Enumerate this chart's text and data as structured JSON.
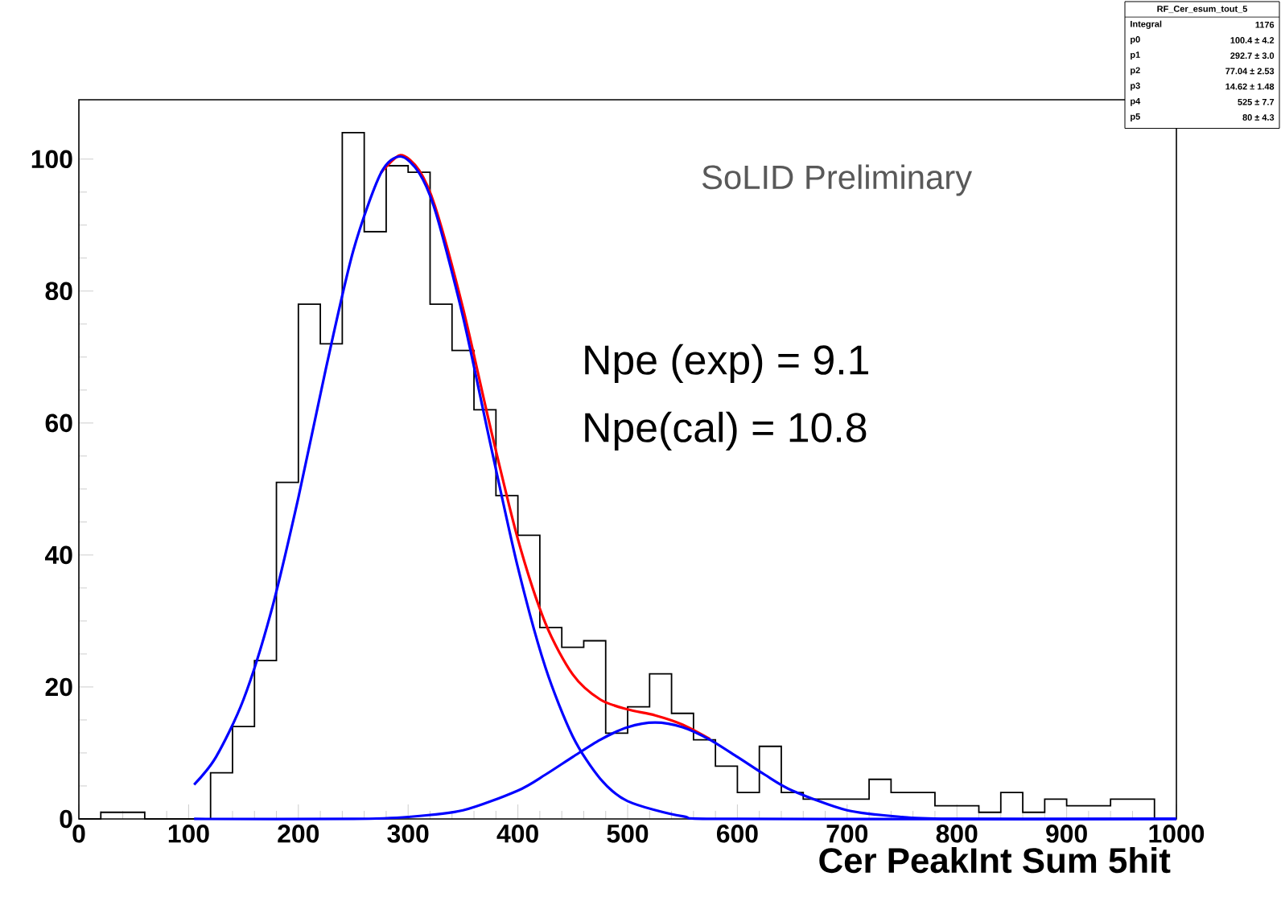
{
  "chart_data": {
    "type": "histogram",
    "xlabel": "Cer PeakInt Sum 5hit",
    "xlim": [
      0,
      1000
    ],
    "ylim": [
      0,
      109
    ],
    "xticks": [
      0,
      100,
      200,
      300,
      400,
      500,
      600,
      700,
      800,
      900,
      1000
    ],
    "yticks": [
      0,
      20,
      40,
      60,
      80,
      100
    ],
    "series": [
      {
        "color": "#000000",
        "bins": [
          0,
          20,
          40,
          60,
          80,
          100,
          120,
          140,
          160,
          180,
          200,
          220,
          240,
          260,
          280,
          300,
          320,
          340,
          360,
          380,
          400,
          420,
          440,
          460,
          480,
          500,
          520,
          540,
          560,
          580,
          600,
          620,
          640,
          660,
          680,
          700,
          720,
          740,
          760,
          780,
          800,
          820,
          840,
          860,
          880,
          900,
          920,
          940,
          960,
          980,
          1000
        ],
        "values": [
          0,
          1,
          1,
          0,
          0,
          0,
          7,
          14,
          24,
          51,
          78,
          72,
          104,
          89,
          99,
          98,
          78,
          71,
          62,
          49,
          43,
          29,
          26,
          27,
          13,
          17,
          22,
          16,
          12,
          8,
          4,
          11,
          4,
          3,
          3,
          3,
          6,
          4,
          4,
          2,
          2,
          1,
          4,
          1,
          3,
          2,
          2,
          3,
          3,
          0
        ]
      },
      {
        "type": "line",
        "color": "#ff0000",
        "x": [
          275,
          293,
          310,
          325,
          350,
          375,
          400,
          425,
          450,
          475,
          500,
          525,
          550,
          575
        ],
        "values": [
          97.9,
          100.6,
          98.3,
          92.6,
          77.4,
          59.3,
          42.4,
          29.7,
          21.9,
          18.1,
          16.6,
          15.7,
          14.3,
          12.1
        ]
      },
      {
        "type": "line",
        "color": "#0000ff",
        "x": [
          105,
          125,
          150,
          175,
          200,
          225,
          250,
          275,
          293,
          310,
          325,
          350,
          375,
          400,
          425,
          450,
          475,
          500,
          550,
          600,
          1000
        ],
        "values": [
          5.2,
          9.4,
          18.1,
          31.3,
          48.7,
          68.2,
          86.1,
          97.8,
          100.4,
          97.9,
          92.0,
          76.1,
          56.8,
          38.1,
          23.0,
          12.5,
          6.1,
          2.7,
          0.4,
          0,
          0
        ]
      },
      {
        "type": "line",
        "color": "#0000ff",
        "x": [
          105,
          250,
          300,
          350,
          400,
          425,
          450,
          475,
          500,
          525,
          550,
          575,
          600,
          625,
          650,
          700,
          750,
          800,
          1000
        ],
        "values": [
          0,
          0,
          0.3,
          1.3,
          4.3,
          6.7,
          9.4,
          12.0,
          13.9,
          14.6,
          13.9,
          12.0,
          9.4,
          6.7,
          4.3,
          1.3,
          0.3,
          0,
          0
        ]
      }
    ],
    "annotations": [
      "SoLID Preliminary",
      "Npe (exp) = 9.1",
      "Npe(cal) = 10.8",
      "RF_Cer_esum_tout_5",
      "Integral",
      "1176",
      "p0",
      "100.4 ± 4.2",
      "p1",
      "292.7 ± 3.0",
      "p2",
      "77.04 ± 2.53",
      "p3",
      "14.62 ± 1.48",
      "p4",
      "525 ± 7.7",
      "p5",
      "80 ± 4.3"
    ]
  }
}
